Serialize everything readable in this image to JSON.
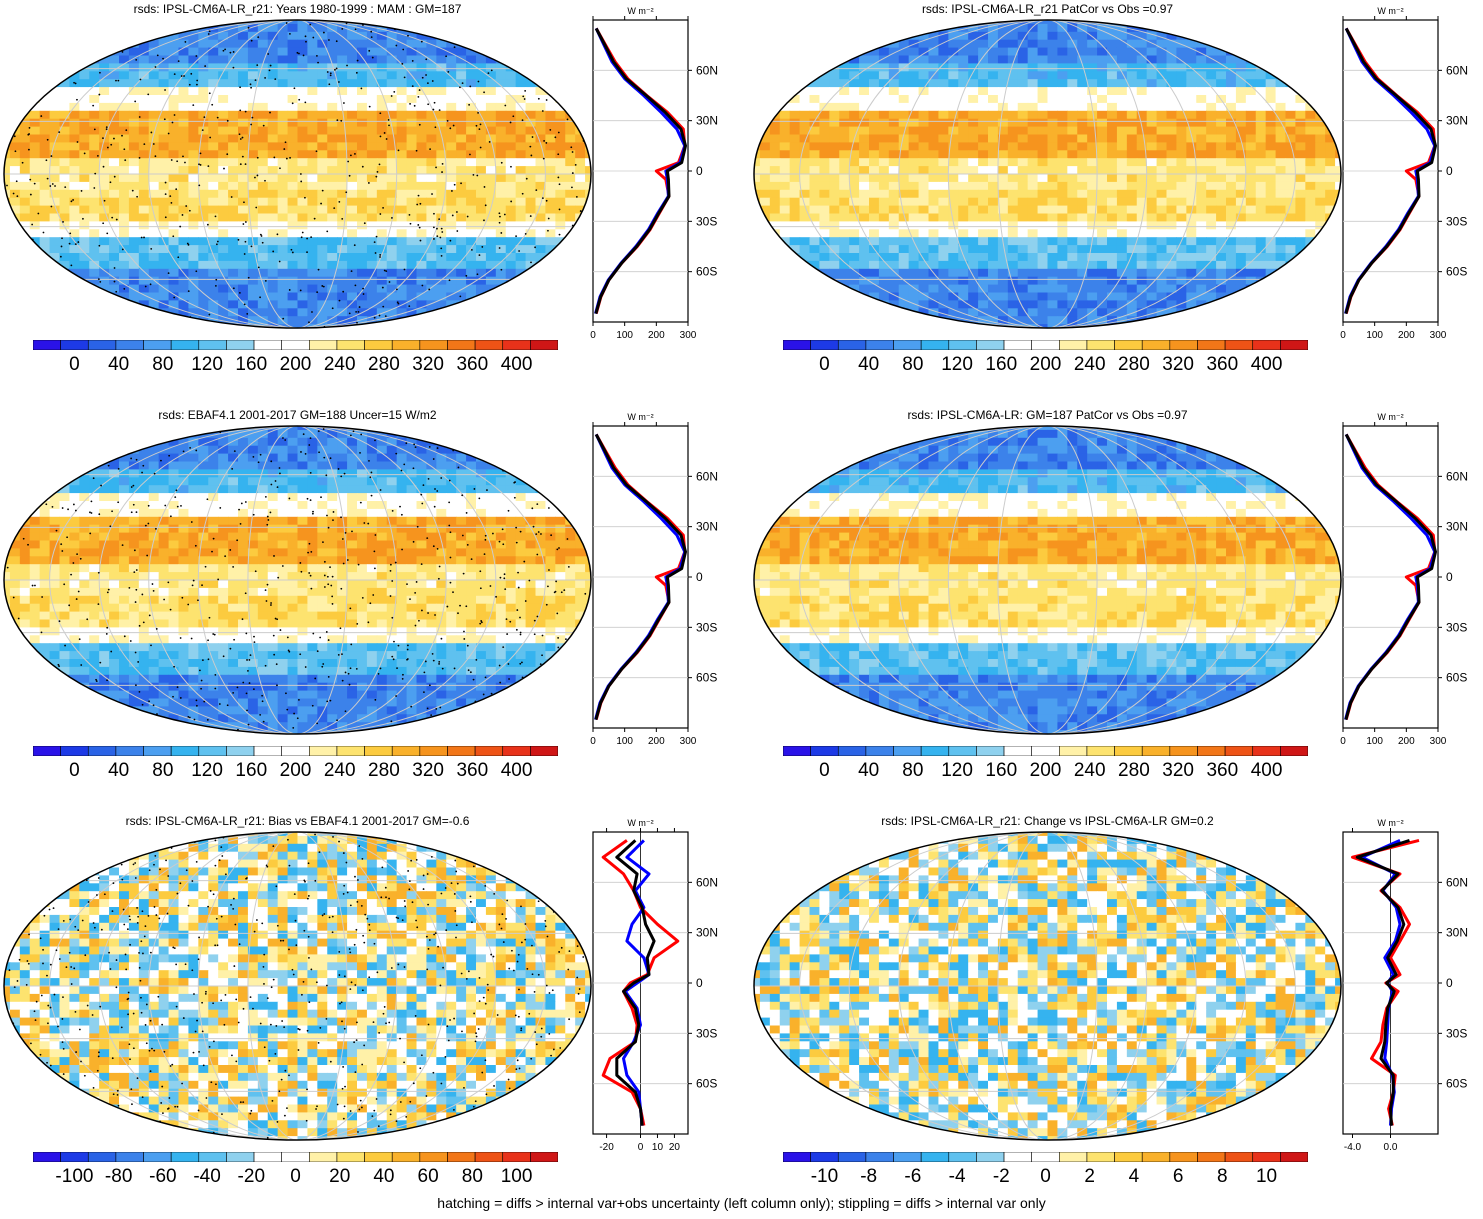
{
  "footnote": "hatching = diffs > internal var+obs uncertainty (left column only); stippling = diffs > internal var only",
  "colors": {
    "palette": [
      "#2a12e8",
      "#1d3ae6",
      "#2a63e6",
      "#3c82ea",
      "#4c9ff0",
      "#35b3ef",
      "#5fc1ef",
      "#8fd1ee",
      "#ffffff",
      "#ffffff",
      "#fff1a8",
      "#fde36f",
      "#fccb3f",
      "#f9b12b",
      "#f6941e",
      "#f27618",
      "#ee5316",
      "#e8321a",
      "#cf1616"
    ],
    "obs_line": "#ff0000",
    "model_line": "#0000ff",
    "ref_line": "#000000"
  },
  "chart_data": [
    {
      "type": "heatmap",
      "panel": "top-left",
      "title": "rsds: IPSL-CM6A-LR_r21: Years 1980-1999 : MAM : GM=187",
      "colorbar_labels": [
        "0",
        "40",
        "80",
        "120",
        "160",
        "200",
        "240",
        "280",
        "320",
        "360",
        "400"
      ],
      "zonal_profile": {
        "unit": "W m⁻²",
        "xticks": [
          "0",
          "100",
          "200",
          "300"
        ],
        "xlim": [
          0,
          300
        ],
        "yticks": [
          "60N",
          "30N",
          "0",
          "30S",
          "60S"
        ],
        "lat": [
          85,
          75,
          65,
          55,
          45,
          35,
          25,
          15,
          5,
          0,
          -5,
          -15,
          -25,
          -35,
          -45,
          -55,
          -65,
          -75,
          -85
        ],
        "series": [
          {
            "color": "red",
            "values": [
              10,
              40,
              70,
              110,
              170,
              235,
              285,
              290,
              270,
              200,
              230,
              240,
              210,
              180,
              140,
              90,
              50,
              25,
              10
            ]
          },
          {
            "color": "blue",
            "values": [
              10,
              35,
              60,
              100,
              160,
              215,
              265,
              290,
              275,
              230,
              235,
              238,
              205,
              175,
              135,
              88,
              48,
              22,
              8
            ]
          },
          {
            "color": "black",
            "values": [
              10,
              38,
              65,
              105,
              168,
              228,
              278,
              292,
              280,
              235,
              238,
              240,
              208,
              178,
              138,
              90,
              50,
              24,
              9
            ]
          }
        ]
      }
    },
    {
      "type": "heatmap",
      "panel": "top-right",
      "title": "rsds: IPSL-CM6A-LR_r21 PatCor vs Obs =0.97",
      "colorbar_labels": [
        "0",
        "40",
        "80",
        "120",
        "160",
        "200",
        "240",
        "280",
        "320",
        "360",
        "400"
      ],
      "zonal_profile": {
        "unit": "W m⁻²",
        "xticks": [
          "0",
          "100",
          "200",
          "300"
        ],
        "xlim": [
          0,
          300
        ],
        "yticks": [
          "60N",
          "30N",
          "0",
          "30S",
          "60S"
        ],
        "lat": [
          85,
          75,
          65,
          55,
          45,
          35,
          25,
          15,
          5,
          0,
          -5,
          -15,
          -25,
          -35,
          -45,
          -55,
          -65,
          -75,
          -85
        ],
        "series": [
          {
            "color": "red",
            "values": [
              10,
              40,
              70,
              110,
              170,
              235,
              285,
              290,
              270,
              200,
              230,
              240,
              210,
              180,
              140,
              90,
              50,
              25,
              10
            ]
          },
          {
            "color": "blue",
            "values": [
              10,
              35,
              60,
              100,
              160,
              215,
              265,
              290,
              275,
              230,
              235,
              238,
              205,
              175,
              135,
              88,
              48,
              22,
              8
            ]
          },
          {
            "color": "black",
            "values": [
              10,
              38,
              65,
              105,
              168,
              228,
              278,
              292,
              280,
              235,
              238,
              240,
              208,
              178,
              138,
              90,
              50,
              24,
              9
            ]
          }
        ]
      }
    },
    {
      "type": "heatmap",
      "panel": "middle-left",
      "title": "rsds: EBAF4.1 2001-2017 GM=188 Uncer=15 W/m2",
      "colorbar_labels": [
        "0",
        "40",
        "80",
        "120",
        "160",
        "200",
        "240",
        "280",
        "320",
        "360",
        "400"
      ],
      "zonal_profile": {
        "unit": "W m⁻²",
        "xticks": [
          "0",
          "100",
          "200",
          "300"
        ],
        "xlim": [
          0,
          300
        ],
        "yticks": [
          "60N",
          "30N",
          "0",
          "30S",
          "60S"
        ],
        "lat": [
          85,
          75,
          65,
          55,
          45,
          35,
          25,
          15,
          5,
          0,
          -5,
          -15,
          -25,
          -35,
          -45,
          -55,
          -65,
          -75,
          -85
        ],
        "series": [
          {
            "color": "red",
            "values": [
              10,
              40,
              70,
              110,
              170,
              235,
              285,
              290,
              270,
              200,
              230,
              240,
              210,
              180,
              140,
              90,
              50,
              25,
              10
            ]
          },
          {
            "color": "blue",
            "values": [
              10,
              35,
              60,
              100,
              160,
              215,
              265,
              290,
              275,
              230,
              235,
              238,
              205,
              175,
              135,
              88,
              48,
              22,
              8
            ]
          },
          {
            "color": "black",
            "values": [
              10,
              38,
              65,
              105,
              168,
              228,
              278,
              292,
              280,
              235,
              238,
              240,
              208,
              178,
              138,
              90,
              50,
              24,
              9
            ]
          }
        ]
      }
    },
    {
      "type": "heatmap",
      "panel": "middle-right",
      "title": "rsds: IPSL-CM6A-LR: GM=187 PatCor vs Obs =0.97",
      "colorbar_labels": [
        "0",
        "40",
        "80",
        "120",
        "160",
        "200",
        "240",
        "280",
        "320",
        "360",
        "400"
      ],
      "zonal_profile": {
        "unit": "W m⁻²",
        "xticks": [
          "0",
          "100",
          "200",
          "300"
        ],
        "xlim": [
          0,
          300
        ],
        "yticks": [
          "60N",
          "30N",
          "0",
          "30S",
          "60S"
        ],
        "lat": [
          85,
          75,
          65,
          55,
          45,
          35,
          25,
          15,
          5,
          0,
          -5,
          -15,
          -25,
          -35,
          -45,
          -55,
          -65,
          -75,
          -85
        ],
        "series": [
          {
            "color": "red",
            "values": [
              10,
              40,
              70,
              110,
              170,
              235,
              285,
              290,
              270,
              200,
              230,
              240,
              210,
              180,
              140,
              90,
              50,
              25,
              10
            ]
          },
          {
            "color": "blue",
            "values": [
              10,
              35,
              60,
              100,
              160,
              215,
              265,
              290,
              275,
              230,
              235,
              238,
              205,
              175,
              135,
              88,
              48,
              22,
              8
            ]
          },
          {
            "color": "black",
            "values": [
              10,
              38,
              65,
              105,
              168,
              228,
              278,
              292,
              280,
              235,
              238,
              240,
              208,
              178,
              138,
              90,
              50,
              24,
              9
            ]
          }
        ]
      }
    },
    {
      "type": "heatmap",
      "panel": "bottom-left",
      "title": "rsds: IPSL-CM6A-LR_r21: Bias vs EBAF4.1 2001-2017 GM=-0.6",
      "colorbar_labels": [
        "-100",
        "-80",
        "-60",
        "-40",
        "-20",
        "0",
        "20",
        "40",
        "60",
        "80",
        "100"
      ],
      "zonal_profile": {
        "unit": "W m⁻²",
        "xticks": [
          "-20",
          "0",
          "10",
          "20"
        ],
        "xlim": [
          -28,
          28
        ],
        "yticks": [
          "60N",
          "30N",
          "0",
          "30S",
          "60S"
        ],
        "lat": [
          85,
          75,
          65,
          55,
          45,
          35,
          25,
          15,
          5,
          0,
          -5,
          -15,
          -25,
          -35,
          -45,
          -55,
          -65,
          -75,
          -85
        ],
        "series": [
          {
            "color": "red",
            "values": [
              -8,
              -22,
              -10,
              -4,
              0,
              10,
              22,
              8,
              4,
              -6,
              -10,
              -5,
              -2,
              -3,
              -18,
              -22,
              -5,
              0,
              2
            ]
          },
          {
            "color": "blue",
            "values": [
              2,
              -8,
              5,
              -3,
              2,
              -5,
              -8,
              2,
              5,
              -2,
              -9,
              -2,
              0,
              -4,
              -10,
              -8,
              -1,
              0,
              1
            ]
          },
          {
            "color": "black",
            "values": [
              -3,
              -14,
              -2,
              -4,
              1,
              3,
              8,
              4,
              5,
              -4,
              -10,
              -3,
              -1,
              -3,
              -14,
              -14,
              -3,
              0,
              1
            ]
          }
        ]
      }
    },
    {
      "type": "heatmap",
      "panel": "bottom-right",
      "title": "rsds: IPSL-CM6A-LR_r21: Change vs IPSL-CM6A-LR GM=0.2",
      "colorbar_labels": [
        "-10",
        "-8",
        "-6",
        "-4",
        "-2",
        "0",
        "2",
        "4",
        "6",
        "8",
        "10"
      ],
      "zonal_profile": {
        "unit": "W m⁻²",
        "xticks": [
          "-4.0",
          "0.0"
        ],
        "xlim": [
          -5,
          5
        ],
        "yticks": [
          "60N",
          "30N",
          "0",
          "30S",
          "60S"
        ],
        "lat": [
          85,
          75,
          65,
          55,
          45,
          35,
          25,
          15,
          5,
          0,
          -5,
          -15,
          -25,
          -35,
          -45,
          -55,
          -65,
          -75,
          -85
        ],
        "series": [
          {
            "color": "red",
            "values": [
              3,
              -4,
              1,
              -1,
              1,
              2,
              1,
              0,
              1,
              -0.5,
              0.8,
              -0.4,
              -0.8,
              -1,
              -2,
              0.5,
              0.3,
              -0.2,
              0.2
            ]
          },
          {
            "color": "blue",
            "values": [
              1,
              -3,
              0.5,
              -0.8,
              0.6,
              1,
              0.5,
              -0.6,
              0.3,
              -0.3,
              0.2,
              -0.2,
              -0.3,
              -0.4,
              -0.6,
              0.2,
              0.4,
              0.1,
              0
            ]
          },
          {
            "color": "black",
            "values": [
              2,
              -3.5,
              0.8,
              -0.9,
              0.8,
              1.4,
              0.7,
              -0.3,
              0.6,
              -0.4,
              0.4,
              -0.3,
              -0.5,
              -0.6,
              -1,
              0.3,
              0.3,
              0,
              0.1
            ]
          }
        ]
      }
    }
  ]
}
